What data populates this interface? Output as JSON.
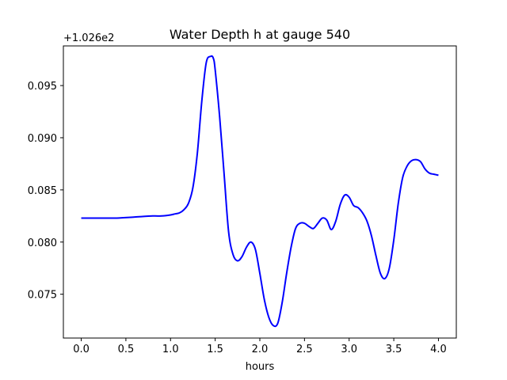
{
  "chart_data": {
    "type": "line",
    "title": "Water Depth h at gauge 540",
    "xlabel": "hours",
    "ylabel": "",
    "y_offset_label": "+1.026e2",
    "xlim": [
      -0.2,
      4.2
    ],
    "ylim": [
      0.0708,
      0.0988
    ],
    "x_ticks": [
      0.0,
      0.5,
      1.0,
      1.5,
      2.0,
      2.5,
      3.0,
      3.5,
      4.0
    ],
    "x_tick_labels": [
      "0.0",
      "0.5",
      "1.0",
      "1.5",
      "2.0",
      "2.5",
      "3.0",
      "3.5",
      "4.0"
    ],
    "y_ticks": [
      0.075,
      0.08,
      0.085,
      0.09,
      0.095
    ],
    "y_tick_labels": [
      "0.075",
      "0.080",
      "0.085",
      "0.090",
      "0.095"
    ],
    "grid": false,
    "legend": "none",
    "series": [
      {
        "color": "#0000ff",
        "x": [
          0.0,
          0.2,
          0.4,
          0.6,
          0.8,
          0.9,
          1.0,
          1.05,
          1.1,
          1.15,
          1.2,
          1.25,
          1.3,
          1.35,
          1.4,
          1.45,
          1.48,
          1.5,
          1.55,
          1.6,
          1.65,
          1.7,
          1.75,
          1.8,
          1.85,
          1.9,
          1.95,
          2.0,
          2.05,
          2.1,
          2.15,
          2.2,
          2.25,
          2.3,
          2.35,
          2.4,
          2.45,
          2.5,
          2.55,
          2.6,
          2.65,
          2.7,
          2.75,
          2.8,
          2.85,
          2.9,
          2.95,
          3.0,
          3.05,
          3.1,
          3.15,
          3.2,
          3.25,
          3.3,
          3.35,
          3.4,
          3.45,
          3.5,
          3.55,
          3.6,
          3.65,
          3.7,
          3.75,
          3.8,
          3.85,
          3.9,
          3.95,
          4.0
        ],
        "y": [
          0.0823,
          0.0823,
          0.0823,
          0.0824,
          0.0825,
          0.0825,
          0.0826,
          0.0827,
          0.0828,
          0.0831,
          0.0837,
          0.0852,
          0.0885,
          0.0935,
          0.0972,
          0.0978,
          0.0976,
          0.0965,
          0.092,
          0.0865,
          0.081,
          0.0788,
          0.0782,
          0.0786,
          0.0795,
          0.08,
          0.0793,
          0.077,
          0.0745,
          0.0728,
          0.072,
          0.0722,
          0.0742,
          0.077,
          0.0795,
          0.0813,
          0.0818,
          0.0818,
          0.0815,
          0.0813,
          0.0818,
          0.0823,
          0.0821,
          0.0812,
          0.082,
          0.0836,
          0.0845,
          0.0843,
          0.0835,
          0.0833,
          0.0828,
          0.082,
          0.0806,
          0.0787,
          0.077,
          0.0765,
          0.0775,
          0.0802,
          0.0837,
          0.0862,
          0.0873,
          0.0878,
          0.0879,
          0.0877,
          0.087,
          0.0866,
          0.0865,
          0.0864
        ]
      }
    ]
  }
}
